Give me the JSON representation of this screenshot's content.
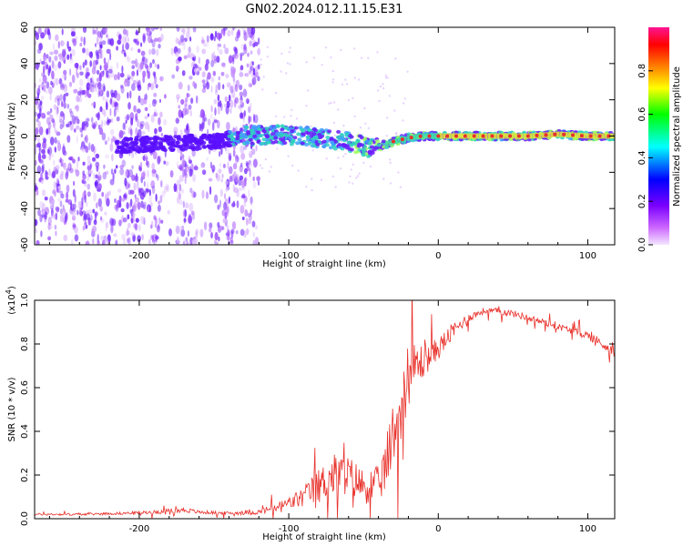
{
  "title": "GN02.2024.012.11.15.E31",
  "colors": {
    "snr_line": "#e8302a",
    "axis": "#000000",
    "scatter_purple": "#7a2cff",
    "scatter_core": "#2fd0c0",
    "scatter_peak": "#e8302a"
  },
  "chart_data": [
    {
      "type": "heatmap",
      "xlabel": "Height of straight line (km)",
      "ylabel": "Frequency (Hz)",
      "xlim": [
        -270,
        118
      ],
      "ylim": [
        -60,
        60
      ],
      "xticks": [
        -200,
        -100,
        0,
        100
      ],
      "yticks": [
        -60,
        -40,
        -20,
        0,
        20,
        40,
        60
      ],
      "grid": false,
      "colorbar": {
        "label": "Normalized spectral amplitude",
        "range": [
          0.0,
          1.0
        ],
        "ticks": [
          "0.0",
          "0.2",
          "0.4",
          "0.6",
          "0.8"
        ],
        "colormap": [
          "#ff00ff",
          "#7f00ff",
          "#0000ff",
          "#00ffff",
          "#00ff00",
          "#ffff00",
          "#ff8000",
          "#ff0000",
          "#ff1493"
        ]
      },
      "center_frequency_track": {
        "x": [
          -210,
          -180,
          -150,
          -130,
          -110,
          -90,
          -70,
          -55,
          -45,
          -40,
          -30,
          -20,
          -10,
          0,
          20,
          40,
          60,
          80,
          100,
          118
        ],
        "y": [
          -5,
          -4,
          -3,
          0,
          1,
          0,
          -2,
          -4,
          -7,
          -6,
          -3,
          -1,
          0,
          0,
          0,
          0,
          0,
          1,
          0,
          0
        ]
      }
    },
    {
      "type": "line",
      "xlabel": "Height of straight line (km)",
      "ylabel": "SNR (10 * v/v)",
      "y_multiplier_label": "(x10",
      "y_multiplier_exp": "4",
      "xlim": [
        -270,
        118
      ],
      "ylim": [
        0.0,
        1.0
      ],
      "xticks": [
        -200,
        -100,
        0,
        100
      ],
      "yticks": [
        "0.0",
        "0.2",
        "0.4",
        "0.6",
        "0.8",
        "1.0"
      ],
      "grid": false,
      "series": [
        {
          "x": [
            -270,
            -240,
            -210,
            -190,
            -170,
            -160,
            -140,
            -120,
            -110,
            -100,
            -90,
            -80,
            -70,
            -60,
            -50,
            -40,
            -35,
            -30,
            -25,
            -20,
            -15,
            -10,
            -5,
            0,
            10,
            20,
            30,
            40,
            50,
            60,
            70,
            80,
            90,
            100,
            110,
            118
          ],
          "values": [
            0.02,
            0.02,
            0.025,
            0.03,
            0.04,
            0.03,
            0.025,
            0.03,
            0.05,
            0.07,
            0.1,
            0.15,
            0.2,
            0.2,
            0.15,
            0.15,
            0.25,
            0.4,
            0.5,
            0.65,
            0.7,
            0.72,
            0.75,
            0.78,
            0.86,
            0.92,
            0.95,
            0.95,
            0.94,
            0.92,
            0.9,
            0.88,
            0.86,
            0.84,
            0.8,
            0.76
          ],
          "noise": [
            0.005,
            0.005,
            0.006,
            0.008,
            0.012,
            0.008,
            0.007,
            0.012,
            0.02,
            0.03,
            0.05,
            0.08,
            0.1,
            0.09,
            0.08,
            0.09,
            0.12,
            0.15,
            0.14,
            0.13,
            0.12,
            0.08,
            0.06,
            0.05,
            0.04,
            0.02,
            0.015,
            0.015,
            0.015,
            0.015,
            0.015,
            0.015,
            0.015,
            0.02,
            0.025,
            0.02
          ]
        }
      ]
    }
  ]
}
